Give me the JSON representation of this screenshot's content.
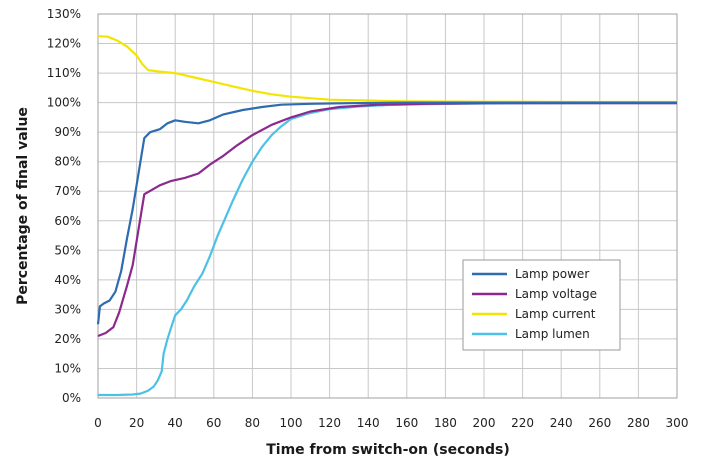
{
  "chart_data": {
    "type": "line",
    "xlabel": "Time from switch-on (seconds)",
    "ylabel": "Percentage of final value",
    "xlim": [
      0,
      300
    ],
    "ylim": [
      0,
      130
    ],
    "x_ticks": [
      0,
      20,
      40,
      60,
      80,
      100,
      120,
      140,
      160,
      180,
      200,
      220,
      240,
      260,
      280,
      300
    ],
    "y_ticks": [
      0,
      10,
      20,
      30,
      40,
      50,
      60,
      70,
      80,
      90,
      100,
      110,
      120,
      130
    ],
    "y_tick_suffix": "%",
    "grid": true,
    "legend_position": "bottom-right",
    "series": [
      {
        "name": "Lamp power",
        "color": "#2e6bb0",
        "points": [
          [
            0,
            25
          ],
          [
            1,
            31
          ],
          [
            3,
            32
          ],
          [
            6,
            33
          ],
          [
            9,
            36
          ],
          [
            12,
            43
          ],
          [
            15,
            54
          ],
          [
            18,
            64
          ],
          [
            21,
            76
          ],
          [
            24,
            88
          ],
          [
            27,
            90
          ],
          [
            32,
            91
          ],
          [
            36,
            93
          ],
          [
            40,
            94
          ],
          [
            45,
            93.5
          ],
          [
            52,
            93
          ],
          [
            58,
            94
          ],
          [
            65,
            96
          ],
          [
            75,
            97.5
          ],
          [
            85,
            98.5
          ],
          [
            95,
            99.3
          ],
          [
            110,
            99.6
          ],
          [
            130,
            99.8
          ],
          [
            160,
            100
          ],
          [
            200,
            100
          ],
          [
            250,
            100
          ],
          [
            300,
            100
          ]
        ]
      },
      {
        "name": "Lamp voltage",
        "color": "#8b2a8c",
        "points": [
          [
            0,
            21
          ],
          [
            4,
            22
          ],
          [
            8,
            24
          ],
          [
            11,
            29
          ],
          [
            15,
            38
          ],
          [
            18,
            45
          ],
          [
            21,
            57
          ],
          [
            24,
            69
          ],
          [
            28,
            70.5
          ],
          [
            32,
            72
          ],
          [
            38,
            73.5
          ],
          [
            45,
            74.5
          ],
          [
            52,
            76
          ],
          [
            58,
            79
          ],
          [
            65,
            82
          ],
          [
            72,
            85.5
          ],
          [
            80,
            89
          ],
          [
            90,
            92.5
          ],
          [
            100,
            95
          ],
          [
            110,
            97
          ],
          [
            125,
            98.5
          ],
          [
            145,
            99.3
          ],
          [
            170,
            99.6
          ],
          [
            200,
            99.8
          ],
          [
            250,
            99.8
          ],
          [
            300,
            99.8
          ]
        ]
      },
      {
        "name": "Lamp current",
        "color": "#f2e600",
        "points": [
          [
            0,
            122.5
          ],
          [
            5,
            122.3
          ],
          [
            10,
            121
          ],
          [
            15,
            119
          ],
          [
            20,
            116
          ],
          [
            23,
            113
          ],
          [
            26,
            111
          ],
          [
            32,
            110.5
          ],
          [
            40,
            110
          ],
          [
            50,
            108.5
          ],
          [
            60,
            107
          ],
          [
            70,
            105.5
          ],
          [
            80,
            104
          ],
          [
            90,
            102.8
          ],
          [
            100,
            102
          ],
          [
            110,
            101.5
          ],
          [
            120,
            101
          ],
          [
            140,
            100.7
          ],
          [
            160,
            100.4
          ],
          [
            200,
            100.3
          ],
          [
            250,
            100.2
          ],
          [
            300,
            100.2
          ]
        ]
      },
      {
        "name": "Lamp lumen",
        "color": "#4cc1e6",
        "points": [
          [
            0,
            1
          ],
          [
            10,
            1
          ],
          [
            18,
            1.2
          ],
          [
            22,
            1.5
          ],
          [
            26,
            2.5
          ],
          [
            29,
            4
          ],
          [
            31,
            6
          ],
          [
            33,
            9
          ],
          [
            34,
            15
          ],
          [
            36,
            20
          ],
          [
            38,
            24
          ],
          [
            40,
            28
          ],
          [
            43,
            30
          ],
          [
            46,
            33
          ],
          [
            50,
            38
          ],
          [
            54,
            42
          ],
          [
            58,
            48
          ],
          [
            62,
            55
          ],
          [
            66,
            61
          ],
          [
            70,
            67
          ],
          [
            75,
            74
          ],
          [
            80,
            80
          ],
          [
            85,
            85
          ],
          [
            90,
            89
          ],
          [
            95,
            92
          ],
          [
            100,
            94.5
          ],
          [
            110,
            96.5
          ],
          [
            120,
            97.8
          ],
          [
            135,
            98.7
          ],
          [
            150,
            99.2
          ],
          [
            170,
            99.5
          ],
          [
            200,
            99.7
          ],
          [
            250,
            99.8
          ],
          [
            300,
            99.8
          ]
        ]
      }
    ]
  }
}
